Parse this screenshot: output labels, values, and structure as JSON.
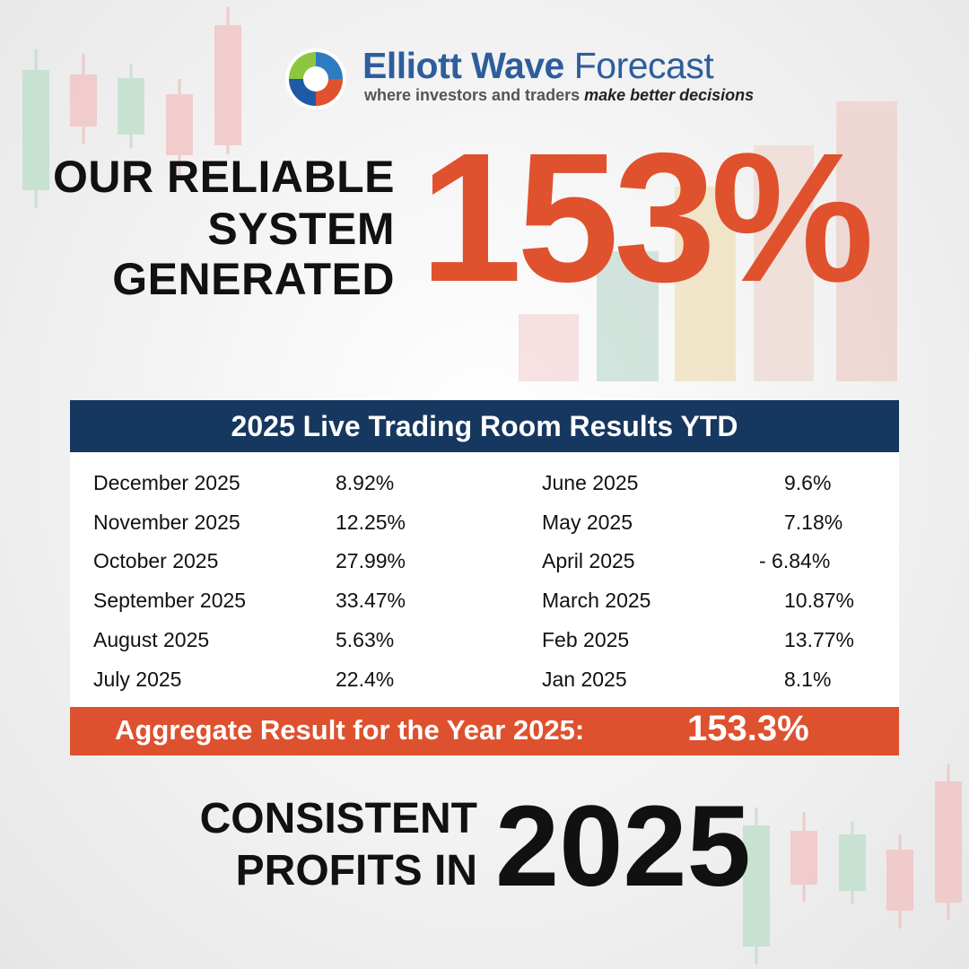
{
  "brand": {
    "name_bold": "Elliott Wave",
    "name_light": " Forecast",
    "tagline_plain": "where investors and traders ",
    "tagline_emph": "make better decisions"
  },
  "hero": {
    "lines": [
      "OUR RELIABLE",
      "SYSTEM",
      "GENERATED"
    ],
    "percent": "153%"
  },
  "results": {
    "title": "2025 Live Trading Room Results YTD",
    "left": [
      {
        "month": "December 2025",
        "value": "8.92%"
      },
      {
        "month": "November 2025",
        "value": "12.25%"
      },
      {
        "month": "October 2025",
        "value": "27.99%"
      },
      {
        "month": "September 2025",
        "value": "33.47%"
      },
      {
        "month": "August 2025",
        "value": "5.63%"
      },
      {
        "month": "July 2025",
        "value": "22.4%"
      }
    ],
    "right": [
      {
        "month": "June 2025",
        "value": "9.6%"
      },
      {
        "month": "May 2025",
        "value": "7.18%"
      },
      {
        "month": "April 2025",
        "value": "-  6.84%"
      },
      {
        "month": "March 2025",
        "value": "10.87%"
      },
      {
        "month": "Feb 2025",
        "value": "13.77%"
      },
      {
        "month": "Jan 2025",
        "value": "8.1%"
      }
    ],
    "aggregate_label": "Aggregate Result for the Year 2025:",
    "aggregate_value": "153.3%"
  },
  "footer": {
    "lines": [
      "CONSISTENT",
      "PROFITS IN"
    ],
    "year": "2025"
  },
  "colors": {
    "navy": "#16375f",
    "accent": "#de512e",
    "brand_blue": "#2e5d9c",
    "candle_green": "#bfe0cc",
    "candle_red": "#f1c4c4"
  }
}
